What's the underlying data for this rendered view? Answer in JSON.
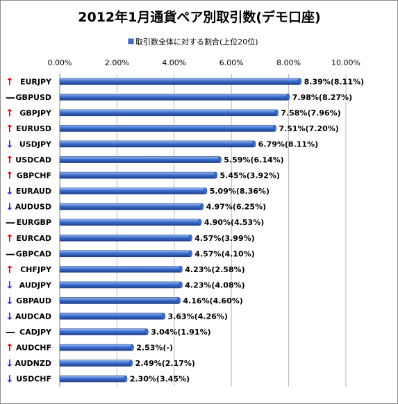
{
  "chart_data": {
    "type": "bar",
    "orientation": "horizontal",
    "title": "2012年1月通貨ペア別取引数(デモ口座)",
    "legend": {
      "label": "取引数全体に対する割合(上位20位)",
      "placement": "top"
    },
    "xlim": [
      0,
      10
    ],
    "x_ticks": [
      "0.00%",
      "2.00%",
      "4.00%",
      "6.00%",
      "8.00%",
      "10.00%"
    ],
    "categories": [
      "EURJPY",
      "GBPUSD",
      "GBPJPY",
      "EURUSD",
      "USDJPY",
      "USDCAD",
      "GBPCHF",
      "EURAUD",
      "AUDUSD",
      "EURGBP",
      "EURCAD",
      "GBPCAD",
      "CHFJPY",
      "AUDJPY",
      "GBPAUD",
      "AUDCAD",
      "CADJPY",
      "AUDCHF",
      "AUDNZD",
      "USDCHF"
    ],
    "trend": [
      "up",
      "flat",
      "up",
      "up",
      "down",
      "up",
      "up",
      "down",
      "down",
      "flat",
      "up",
      "flat",
      "up",
      "down",
      "down",
      "down",
      "flat",
      "up",
      "down",
      "down"
    ],
    "trend_symbols": {
      "up": "↑",
      "down": "↓",
      "flat": "—"
    },
    "values": [
      8.39,
      7.98,
      7.58,
      7.51,
      6.79,
      5.59,
      5.45,
      5.09,
      4.97,
      4.9,
      4.57,
      4.57,
      4.23,
      4.23,
      4.16,
      3.63,
      3.04,
      2.53,
      2.49,
      2.3
    ],
    "value_labels": [
      "8.39%(8.11%)",
      "7.98%(8.27%)",
      "7.58%(7.96%)",
      "7.51%(7.20%)",
      "6.79%(8.11%)",
      "5.59%(6.14%)",
      "5.45%(3.92%)",
      "5.09%(8.36%)",
      "4.97%(6.25%)",
      "4.90%(4.53%)",
      "4.57%(3.99%)",
      "4.57%(4.10%)",
      "4.23%(2.58%)",
      "4.23%(4.08%)",
      "4.16%(4.60%)",
      "3.63%(4.26%)",
      "3.04%(1.91%)",
      "2.53%(-)",
      "2.49%(2.17%)",
      "2.30%(3.45%)"
    ],
    "grid": true,
    "colors": {
      "bar_dark": "#1f3f8a",
      "bar_mid": "#3d6fd0",
      "bar_light": "#9ec0f4",
      "grid": "#b8b8b8",
      "up": "#e00000",
      "down": "#2a2ad0",
      "flat": "#000000"
    }
  }
}
